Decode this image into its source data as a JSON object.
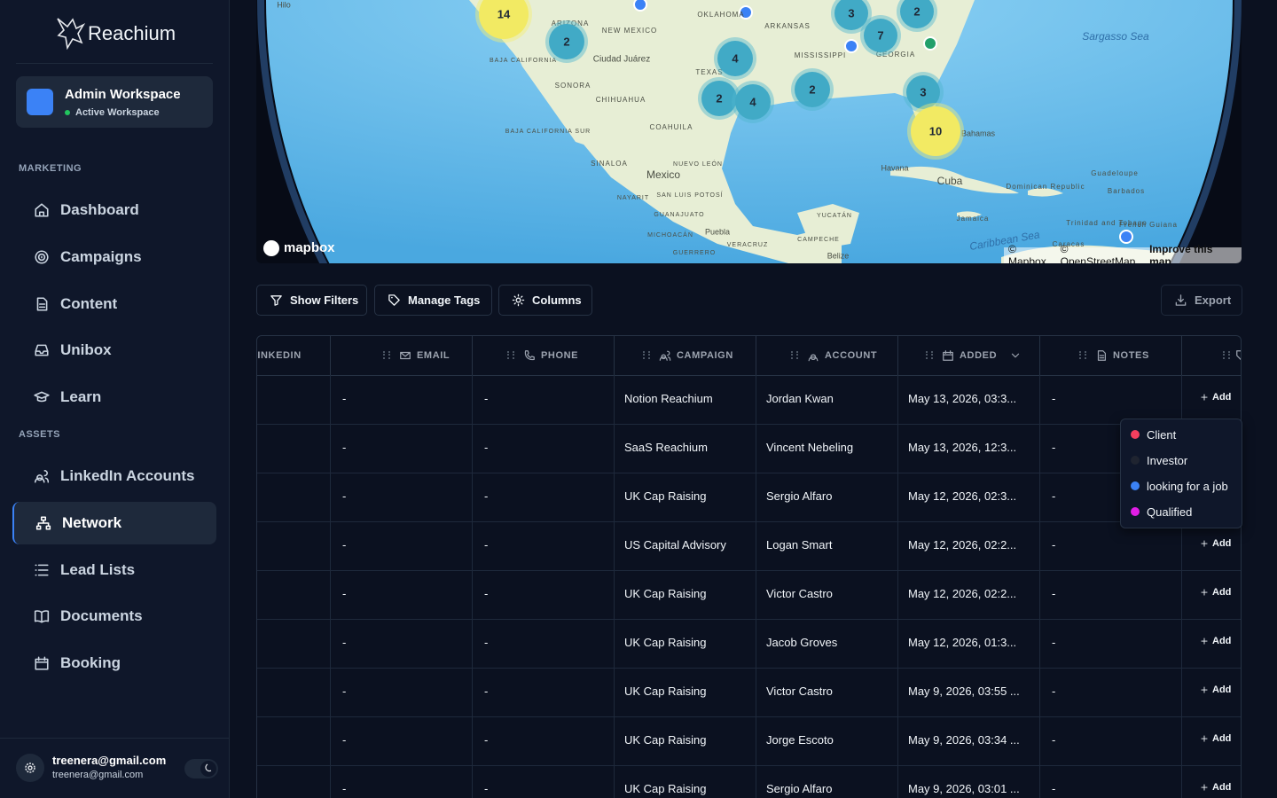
{
  "sidebar": {
    "brand": "Reachium",
    "workspace": {
      "name": "Admin Workspace",
      "status": "Active Workspace"
    },
    "sections": [
      {
        "title": "MARKETING",
        "items": [
          {
            "label": "Dashboard",
            "icon": "home"
          },
          {
            "label": "Campaigns",
            "icon": "target"
          },
          {
            "label": "Content",
            "icon": "doc"
          },
          {
            "label": "Unibox",
            "icon": "inbox"
          },
          {
            "label": "Learn",
            "icon": "cap"
          }
        ]
      },
      {
        "title": "ASSETS",
        "items": [
          {
            "label": "LinkedIn Accounts",
            "icon": "users"
          },
          {
            "label": "Network",
            "icon": "network",
            "active": true
          },
          {
            "label": "Lead Lists",
            "icon": "list"
          },
          {
            "label": "Documents",
            "icon": "book"
          },
          {
            "label": "Booking",
            "icon": "calendar"
          }
        ]
      }
    ],
    "user": {
      "name": "treenera@gmail.com",
      "email": "treenera@gmail.com"
    }
  },
  "map": {
    "clusters": [
      "14",
      "2",
      "4",
      "2",
      "4",
      "2",
      "3",
      "7",
      "2",
      "3",
      "10"
    ],
    "places": [
      "Hilo",
      "ARIZONA",
      "NEW MEXICO",
      "OKLAHOMA",
      "ARKANSAS",
      "MISSISSIPPI",
      "GEORGIA",
      "TEXAS",
      "Ciudad Juárez",
      "BAJA CALIFORNIA",
      "SONORA",
      "CHIHUAHUA",
      "BAJA CALIFORNIA SUR",
      "COAHUILA",
      "SINALOA",
      "NUEVO LEÓN",
      "Mexico",
      "NAYARIT",
      "SAN LUIS POTOSÍ",
      "GUANAJUATO",
      "MICHOACÁN",
      "Puebla",
      "GUERRERO",
      "VERACRUZ",
      "YUCATÁN",
      "CAMPECHE",
      "Belize",
      "Havana",
      "Cuba",
      "Bahamas",
      "Dominican Republic",
      "Guadeloupe",
      "Barbados",
      "Jamaica",
      "Trinidad and Tobago",
      "French Guiana",
      "Caracas",
      "Caribbean Sea",
      "Sargasso Sea"
    ],
    "logo": "mapbox",
    "attribution": [
      "© Mapbox",
      "© OpenStreetMap",
      "Improve this map"
    ]
  },
  "toolbar": {
    "buttons": [
      "Show Filters",
      "Manage Tags",
      "Columns"
    ],
    "export": "Export"
  },
  "table": {
    "columns": [
      "LINKEDIN",
      "EMAIL",
      "PHONE",
      "CAMPAIGN",
      "ACCOUNT",
      "ADDED",
      "NOTES"
    ],
    "rows": [
      [
        "-",
        "-",
        "Notion Reachium",
        "Jordan Kwan",
        "May 13, 2026, 03:3...",
        "-",
        "Add"
      ],
      [
        "-",
        "-",
        "SaaS Reachium",
        "Vincent Nebeling",
        "May 13, 2026, 12:3...",
        "-",
        "Add"
      ],
      [
        "-",
        "-",
        "UK Cap Raising",
        "Sergio Alfaro",
        "May 12, 2026, 02:3...",
        "-",
        "Add"
      ],
      [
        "-",
        "-",
        "US Capital Advisory",
        "Logan Smart",
        "May 12, 2026, 02:2...",
        "-",
        "Add"
      ],
      [
        "-",
        "-",
        "UK Cap Raising",
        "Victor Castro",
        "May 12, 2026, 02:2...",
        "-",
        "Add"
      ],
      [
        "-",
        "-",
        "UK Cap Raising",
        "Jacob Groves",
        "May 12, 2026, 01:3...",
        "-",
        "Add"
      ],
      [
        "-",
        "-",
        "UK Cap Raising",
        "Victor Castro",
        "May 9, 2026, 03:55 ...",
        "-",
        "Add"
      ],
      [
        "-",
        "-",
        "UK Cap Raising",
        "Jorge Escoto",
        "May 9, 2026, 03:34 ...",
        "-",
        "Add"
      ],
      [
        "-",
        "-",
        "UK Cap Raising",
        "Sergio Alfaro",
        "May 9, 2026, 03:01 ...",
        "-",
        "Add"
      ]
    ]
  },
  "tag_menu": [
    {
      "label": "Client",
      "color": "#f43f5e"
    },
    {
      "label": "Investor",
      "color": "#1f2430"
    },
    {
      "label": "looking for a job",
      "color": "#3b82f6"
    },
    {
      "label": "Qualified",
      "color": "#e11ee6"
    }
  ]
}
